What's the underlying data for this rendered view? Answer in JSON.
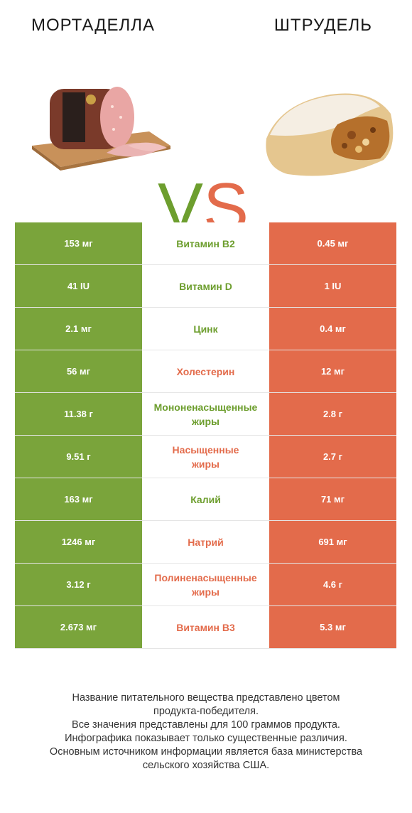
{
  "header": {
    "left_title": "МОРТАДЕЛЛА",
    "right_title": "ШТРУДЕЛЬ",
    "vs_v": "V",
    "vs_s": "S"
  },
  "colors": {
    "left_winner": "#7aa43b",
    "right_winner": "#e36b4b"
  },
  "rows": [
    {
      "left": "153 мг",
      "name": "Витамин B2",
      "right": "0.45 мг",
      "winner": "left"
    },
    {
      "left": "41 IU",
      "name": "Витамин D",
      "right": "1 IU",
      "winner": "left"
    },
    {
      "left": "2.1 мг",
      "name": "Цинк",
      "right": "0.4 мг",
      "winner": "left"
    },
    {
      "left": "56 мг",
      "name": "Холестерин",
      "right": "12 мг",
      "winner": "right"
    },
    {
      "left": "11.38 г",
      "name": "Мононенасыщенные\nжиры",
      "right": "2.8 г",
      "winner": "left"
    },
    {
      "left": "9.51 г",
      "name": "Насыщенные\nжиры",
      "right": "2.7 г",
      "winner": "right"
    },
    {
      "left": "163 мг",
      "name": "Калий",
      "right": "71 мг",
      "winner": "left"
    },
    {
      "left": "1246 мг",
      "name": "Натрий",
      "right": "691 мг",
      "winner": "right"
    },
    {
      "left": "3.12 г",
      "name": "Полиненасыщенные\nжиры",
      "right": "4.6 г",
      "winner": "right"
    },
    {
      "left": "2.673 мг",
      "name": "Витамин B3",
      "right": "5.3 мг",
      "winner": "right"
    }
  ],
  "footnote": [
    "Название питательного вещества представлено цветом",
    "продукта-победителя.",
    "Все значения представлены для 100 граммов продукта.",
    "Инфографика показывает только существенные различия.",
    "Основным источником информации является база министерства",
    "сельского хозяйства США."
  ]
}
